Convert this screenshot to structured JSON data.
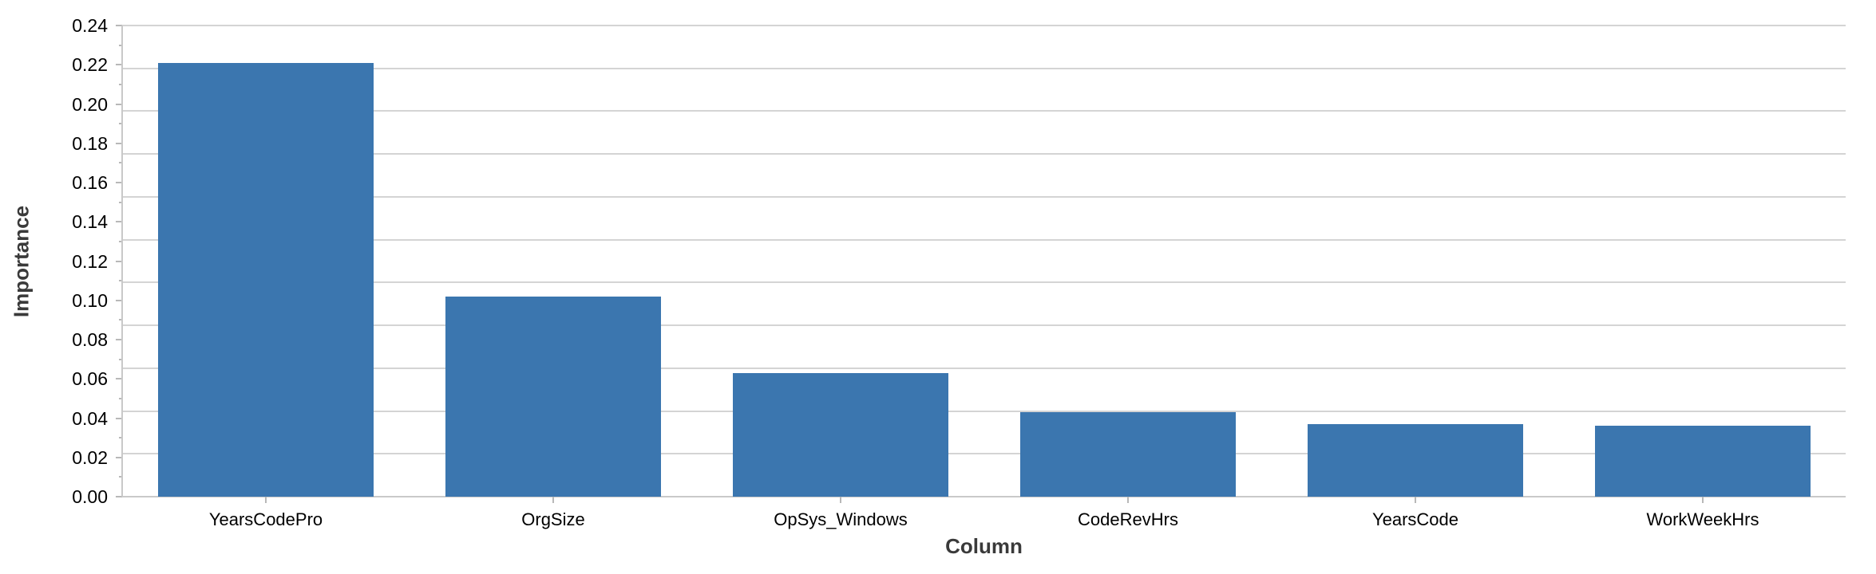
{
  "chart_data": {
    "type": "bar",
    "title": "",
    "xlabel": "Column",
    "ylabel": "Importance",
    "categories": [
      "YearsCodePro",
      "OrgSize",
      "OpSys_Windows",
      "CodeRevHrs",
      "YearsCode",
      "WorkWeekHrs"
    ],
    "values": [
      0.221,
      0.102,
      0.063,
      0.043,
      0.037,
      0.036
    ],
    "ylim": [
      0,
      0.24
    ],
    "y_tick_step": 0.02,
    "y_minor_tick_step": 0.01,
    "y_tick_labels": [
      "0.24",
      "0.22",
      "0.20",
      "0.18",
      "0.16",
      "0.14",
      "0.12",
      "0.10",
      "0.08",
      "0.06",
      "0.04",
      "0.02",
      "0.00"
    ],
    "grid": "horizontal",
    "legend_position": "none",
    "colors": {
      "bar": "#3B76AF",
      "grid": "#D4D4D4",
      "axis": "#C9C9C9",
      "tick": "#B8B8B8",
      "tick_label": "#000000",
      "axis_title": "#3A3A3A",
      "background": "#FFFFFF"
    }
  }
}
